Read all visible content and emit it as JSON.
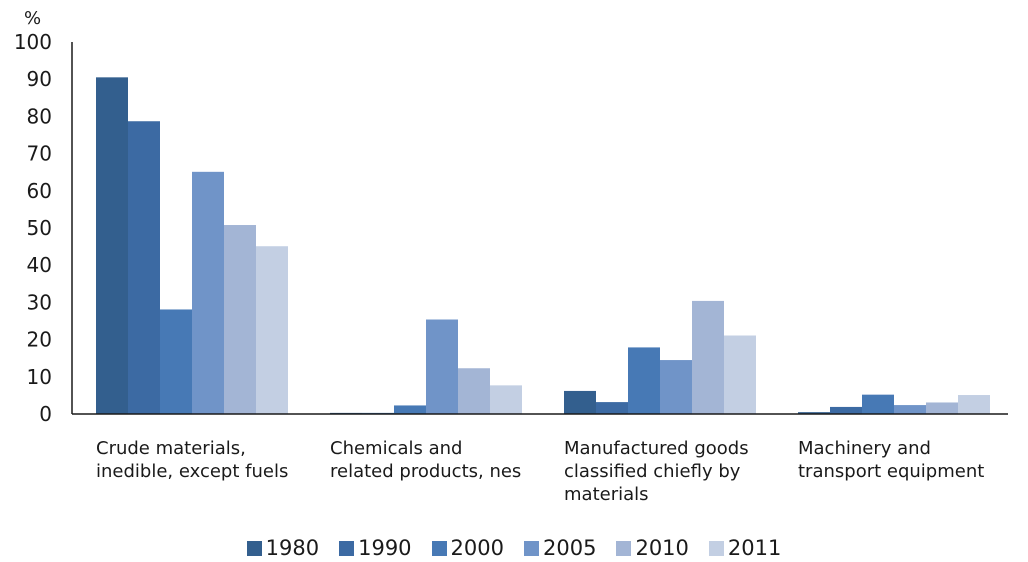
{
  "chart_data": {
    "type": "bar",
    "ylabel": "%",
    "ylim": [
      0,
      100
    ],
    "yticks": [
      "0",
      "10",
      "20",
      "30",
      "40",
      "50",
      "60",
      "70",
      "80",
      "90",
      "100"
    ],
    "categories": [
      [
        "Crude materials,",
        "inedible, except fuels"
      ],
      [
        "Chemicals and",
        "related products, nes"
      ],
      [
        "Manufactured goods",
        "classified chiefly by",
        "materials"
      ],
      [
        "Machinery and",
        "transport equipment"
      ]
    ],
    "series": [
      {
        "name": "1980",
        "color": "#335f8e",
        "values": [
          90.5,
          0.3,
          6.2,
          0.5
        ]
      },
      {
        "name": "1990",
        "color": "#3c6aa3",
        "values": [
          78.7,
          0.3,
          3.2,
          1.9
        ]
      },
      {
        "name": "2000",
        "color": "#4779b5",
        "values": [
          28.1,
          2.3,
          17.9,
          5.2
        ]
      },
      {
        "name": "2005",
        "color": "#7094c8",
        "values": [
          65.1,
          25.4,
          14.5,
          2.4
        ]
      },
      {
        "name": "2010",
        "color": "#a3b5d5",
        "values": [
          50.8,
          12.3,
          30.4,
          3.1
        ]
      },
      {
        "name": "2011",
        "color": "#c3cfe3",
        "values": [
          45.1,
          7.7,
          21.1,
          5.1
        ]
      }
    ],
    "legend_position": "bottom",
    "grid": false
  }
}
